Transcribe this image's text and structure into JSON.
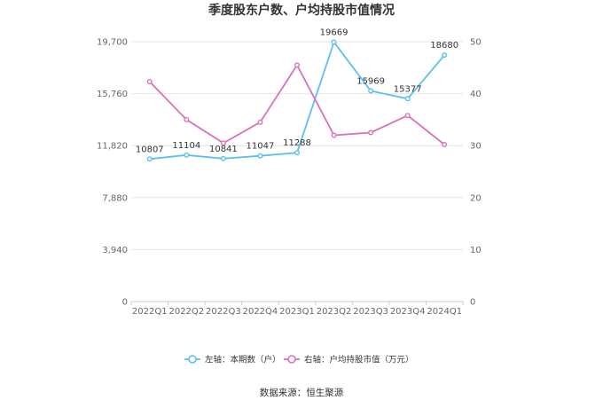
{
  "chart_data": {
    "type": "line",
    "title": "季度股东户数、户均持股市值情况",
    "categories": [
      "2022Q1",
      "2022Q2",
      "2022Q3",
      "2022Q4",
      "2023Q1",
      "2023Q2",
      "2023Q3",
      "2023Q4",
      "2024Q1"
    ],
    "left_axis": {
      "ticks": [
        "0",
        "3,940",
        "7,880",
        "11,820",
        "15,760",
        "19,700"
      ],
      "ylim": [
        0,
        19700
      ]
    },
    "right_axis": {
      "ticks": [
        "0",
        "10",
        "20",
        "30",
        "40",
        "50"
      ],
      "ylim": [
        0,
        50
      ]
    },
    "series": [
      {
        "name": "左轴：本期数（户）",
        "axis": "left",
        "color": "#5bc0eb",
        "values": [
          10807,
          11104,
          10841,
          11047,
          11288,
          19669,
          15969,
          15377,
          18680
        ],
        "labels": [
          "10807",
          "11104",
          "10841",
          "11047",
          "11288",
          "19669",
          "15969",
          "15377",
          "18680"
        ]
      },
      {
        "name": "右轴：户均持股市值（万元）",
        "axis": "right",
        "color": "#d972b6",
        "values": [
          42.3,
          35.0,
          30.5,
          34.5,
          45.5,
          32.0,
          32.5,
          35.8,
          30.2
        ]
      }
    ],
    "grid": true,
    "legend_position": "bottom"
  },
  "source_text": "数据来源：恒生聚源"
}
